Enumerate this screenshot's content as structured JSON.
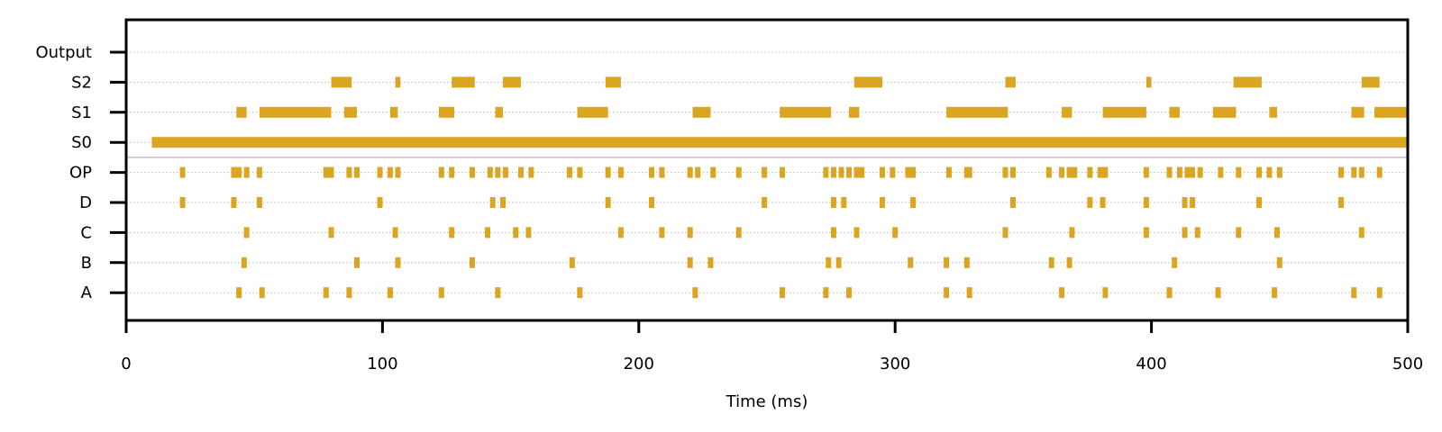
{
  "chart_data": {
    "type": "raster",
    "title": "",
    "xlabel": "Time (ms)",
    "ylabel": "",
    "xlim": [
      0,
      500
    ],
    "xticks": [
      0,
      100,
      200,
      300,
      400,
      500
    ],
    "grid": "horizontal-dotted",
    "rows": [
      "Output",
      "S2",
      "S1",
      "S0",
      "OP",
      "D",
      "C",
      "B",
      "A"
    ],
    "separator_between": [
      "S0",
      "OP"
    ],
    "colors": {
      "marks": "#DAA520",
      "separator": "#A797B8",
      "grid": "#BBBBBB",
      "axis": "#000000"
    },
    "series": [
      {
        "row": "Output",
        "events": []
      },
      {
        "row": "S2",
        "spans": [
          [
            80,
            88
          ],
          [
            105,
            107
          ],
          [
            127,
            136
          ],
          [
            147,
            154
          ],
          [
            187,
            193
          ],
          [
            284,
            295
          ],
          [
            343,
            347
          ],
          [
            398,
            400
          ],
          [
            432,
            443
          ],
          [
            482,
            489
          ]
        ]
      },
      {
        "row": "S1",
        "spans": [
          [
            43,
            47
          ],
          [
            52,
            80
          ],
          [
            85,
            90
          ],
          [
            103,
            106
          ],
          [
            122,
            128
          ],
          [
            144,
            147
          ],
          [
            176,
            188
          ],
          [
            221,
            228
          ],
          [
            255,
            275
          ],
          [
            282,
            286
          ],
          [
            320,
            344
          ],
          [
            365,
            369
          ],
          [
            381,
            398
          ],
          [
            407,
            411
          ],
          [
            424,
            433
          ],
          [
            446,
            449
          ],
          [
            478,
            483
          ],
          [
            487,
            500
          ]
        ]
      },
      {
        "row": "S0",
        "spans": [
          [
            10,
            500
          ]
        ]
      },
      {
        "row": "OP",
        "events": [
          22,
          42,
          44,
          47,
          52,
          78,
          80,
          87,
          90,
          99,
          103,
          106,
          123,
          127,
          135,
          142,
          145,
          148,
          154,
          158,
          173,
          177,
          188,
          193,
          205,
          209,
          220,
          223,
          229,
          239,
          249,
          256,
          273,
          276,
          279,
          282,
          285,
          287,
          295,
          299,
          305,
          307,
          321,
          328,
          329,
          343,
          346,
          360,
          365,
          368,
          370,
          376,
          380,
          382,
          398,
          407,
          411,
          414,
          416,
          419,
          427,
          434,
          442,
          446,
          450,
          474,
          479,
          482,
          489
        ]
      },
      {
        "row": "D",
        "events": [
          22,
          42,
          52,
          99,
          143,
          147,
          188,
          205,
          249,
          276,
          280,
          295,
          307,
          346,
          376,
          381,
          398,
          413,
          416,
          442,
          474
        ]
      },
      {
        "row": "C",
        "events": [
          47,
          80,
          105,
          127,
          141,
          152,
          157,
          193,
          209,
          220,
          239,
          276,
          285,
          300,
          343,
          369,
          398,
          413,
          418,
          434,
          449,
          482
        ]
      },
      {
        "row": "B",
        "events": [
          46,
          90,
          106,
          135,
          174,
          220,
          228,
          274,
          278,
          306,
          320,
          328,
          361,
          368,
          409,
          450
        ]
      },
      {
        "row": "A",
        "events": [
          44,
          53,
          78,
          87,
          103,
          123,
          145,
          177,
          222,
          256,
          273,
          282,
          320,
          329,
          365,
          382,
          407,
          426,
          448,
          479,
          489
        ]
      }
    ]
  }
}
